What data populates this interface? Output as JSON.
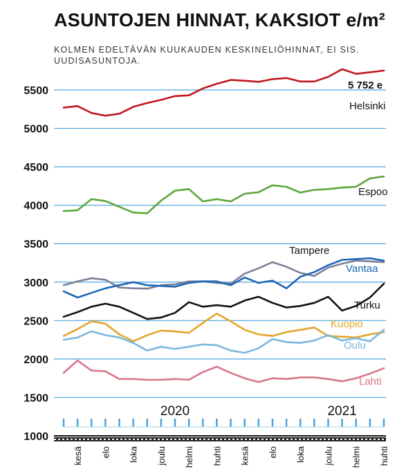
{
  "chart_data": {
    "type": "line",
    "title": "ASUNTOJEN HINNAT, KAKSIOT e/m²",
    "subtitle": "KOLMEN EDELTÄVÄN KUUKAUDEN KESKINELIÖHINNAT, EI SIS. UUDISASUNTOJA.",
    "ylim": [
      1000,
      5750
    ],
    "yticks": [
      1000,
      1500,
      2000,
      2500,
      3000,
      3500,
      4000,
      4500,
      5000,
      5500
    ],
    "grid": true,
    "x_tick_labels": [
      "kesä",
      "elo",
      "loka",
      "joulu",
      "helmi",
      "huhti",
      "kesä",
      "elo",
      "loka",
      "joulu",
      "helmi",
      "huhti"
    ],
    "year_labels": [
      {
        "label": "2020",
        "index": 8
      },
      {
        "label": "2021",
        "index": 20
      }
    ],
    "annotation": "5 752 e",
    "series": [
      {
        "name": "Helsinki",
        "color": "#c0161f",
        "values": [
          5270,
          5290,
          5200,
          5165,
          5190,
          5280,
          5330,
          5370,
          5420,
          5430,
          5520,
          5580,
          5630,
          5620,
          5605,
          5640,
          5655,
          5610,
          5610,
          5670,
          5770,
          5710,
          5730,
          5752
        ]
      },
      {
        "name": "Espoo",
        "color": "#5aa63a",
        "values": [
          3925,
          3935,
          4080,
          4055,
          3980,
          3905,
          3895,
          4060,
          4190,
          4210,
          4050,
          4080,
          4050,
          4150,
          4170,
          4260,
          4240,
          4165,
          4200,
          4210,
          4230,
          4240,
          4350,
          4375
        ]
      },
      {
        "name": "Tampere",
        "color": "#7a7f98",
        "values": [
          2960,
          3010,
          3050,
          3030,
          2930,
          2920,
          2915,
          2960,
          2970,
          3010,
          3010,
          2990,
          2980,
          3110,
          3180,
          3260,
          3200,
          3120,
          3080,
          3190,
          3240,
          3280,
          3270,
          3260
        ]
      },
      {
        "name": "Vantaa",
        "color": "#1d67b4",
        "values": [
          2880,
          2800,
          2860,
          2920,
          2960,
          3000,
          2960,
          2950,
          2940,
          2990,
          3010,
          3010,
          2960,
          3060,
          2990,
          3020,
          2920,
          3070,
          3130,
          3220,
          3290,
          3300,
          3310,
          3280
        ]
      },
      {
        "name": "Turku",
        "color": "#111111",
        "values": [
          2550,
          2610,
          2680,
          2720,
          2680,
          2600,
          2520,
          2540,
          2600,
          2740,
          2680,
          2700,
          2680,
          2760,
          2810,
          2730,
          2670,
          2690,
          2730,
          2810,
          2630,
          2690,
          2800,
          2980
        ]
      },
      {
        "name": "Kuopio",
        "color": "#e3a52a",
        "values": [
          2300,
          2390,
          2490,
          2460,
          2320,
          2230,
          2310,
          2370,
          2360,
          2340,
          2470,
          2590,
          2490,
          2380,
          2320,
          2300,
          2350,
          2380,
          2410,
          2300,
          2290,
          2280,
          2320,
          2350
        ]
      },
      {
        "name": "Oulu",
        "color": "#7ab7df",
        "values": [
          2250,
          2280,
          2360,
          2310,
          2280,
          2210,
          2110,
          2160,
          2130,
          2160,
          2190,
          2180,
          2110,
          2080,
          2140,
          2260,
          2220,
          2210,
          2240,
          2310,
          2240,
          2270,
          2230,
          2380
        ]
      },
      {
        "name": "Lahti",
        "color": "#d9758a",
        "values": [
          1820,
          1980,
          1850,
          1840,
          1740,
          1740,
          1730,
          1730,
          1740,
          1730,
          1830,
          1900,
          1820,
          1750,
          1700,
          1750,
          1740,
          1760,
          1760,
          1740,
          1710,
          1750,
          1810,
          1880
        ]
      }
    ]
  }
}
